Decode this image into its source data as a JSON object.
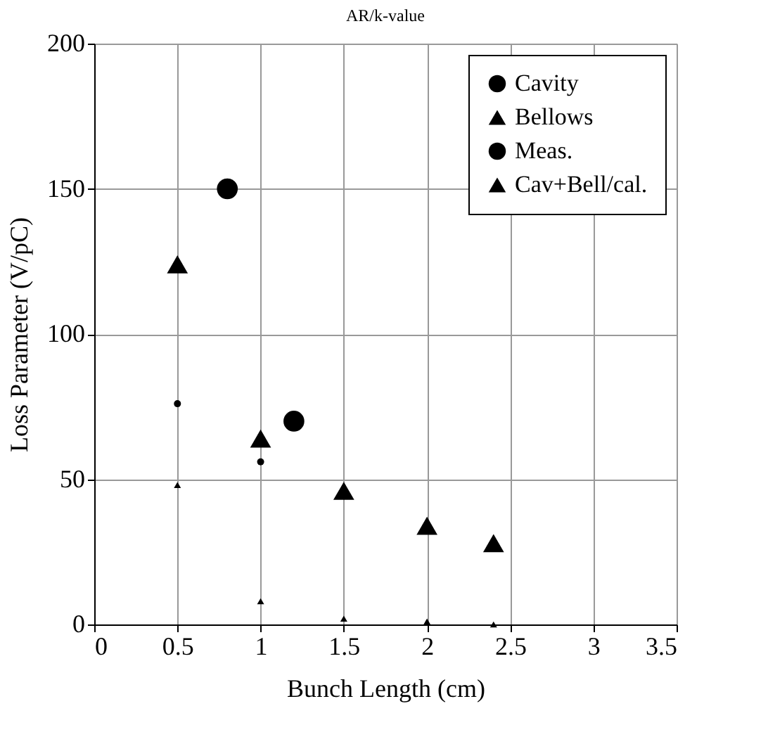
{
  "chart_data": {
    "type": "scatter",
    "title": "AR/k-value",
    "xlabel": "Bunch Length (cm)",
    "ylabel": "Loss Parameter (V/pC)",
    "xlim": [
      0,
      3.5
    ],
    "xticks": [
      0,
      0.5,
      1,
      1.5,
      2,
      2.5,
      3,
      3.5
    ],
    "ylim": [
      0,
      200
    ],
    "yticks": [
      0,
      50,
      100,
      150,
      200
    ],
    "grid": true,
    "legend": "top right",
    "series": [
      {
        "name": "Cavity",
        "color": "#000000",
        "marker": "circle",
        "x": [
          0.5,
          1
        ],
        "values": [
          76,
          56
        ]
      },
      {
        "name": "Bellows",
        "color": "#000000",
        "marker": "triangle",
        "x": [
          0.5,
          1,
          1.5,
          2,
          2.4
        ],
        "values": [
          48,
          8,
          2,
          1,
          0
        ]
      },
      {
        "name": "Meas.",
        "color": "#000000",
        "marker": "circle",
        "x": [
          0.8,
          1.2
        ],
        "values": [
          150,
          70
        ]
      },
      {
        "name": "Cav+Bell/cal.",
        "color": "#000000",
        "marker": "triangle",
        "x": [
          0.5,
          1,
          1.5,
          2,
          2.4
        ],
        "values": [
          124,
          64,
          46,
          34,
          28
        ]
      }
    ]
  }
}
